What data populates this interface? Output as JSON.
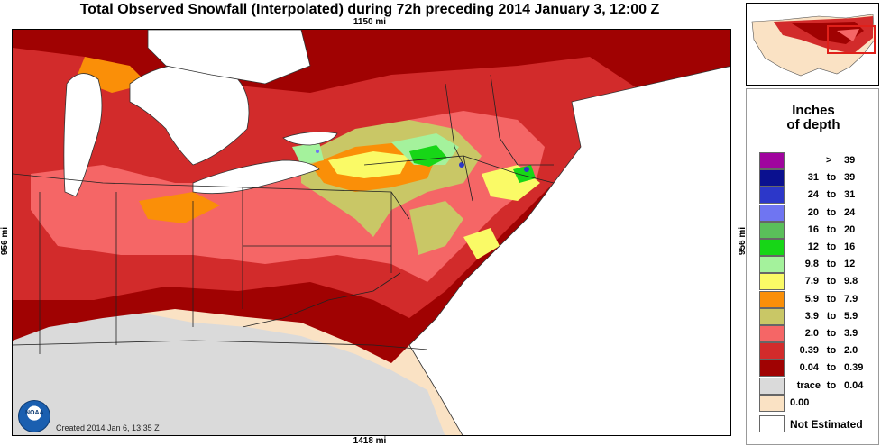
{
  "title": "Total Observed Snowfall (Interpolated) during 72h preceding 2014 January 3, 12:00 Z",
  "distances": {
    "top": "1150 mi",
    "bottom": "1418 mi",
    "left": "956 mi",
    "right": "956 mi"
  },
  "created": "Created 2014 Jan 6, 13:35 Z",
  "logo": {
    "text": "NOAA"
  },
  "legend": {
    "title": "Inches of depth",
    "not_estimated": "Not Estimated",
    "items": [
      {
        "a": ">",
        "to": "",
        "b": "39",
        "color": "#a0049e"
      },
      {
        "a": "31",
        "to": "to",
        "b": "39",
        "color": "#0a108f"
      },
      {
        "a": "24",
        "to": "to",
        "b": "31",
        "color": "#2c37c9"
      },
      {
        "a": "20",
        "to": "to",
        "b": "24",
        "color": "#6f75f2"
      },
      {
        "a": "16",
        "to": "to",
        "b": "20",
        "color": "#5abf5a"
      },
      {
        "a": "12",
        "to": "to",
        "b": "16",
        "color": "#17d617"
      },
      {
        "a": "9.8",
        "to": "to",
        "b": "12",
        "color": "#a4f29c"
      },
      {
        "a": "7.9",
        "to": "to",
        "b": "9.8",
        "color": "#fafa66"
      },
      {
        "a": "5.9",
        "to": "to",
        "b": "7.9",
        "color": "#fa8f08"
      },
      {
        "a": "3.9",
        "to": "to",
        "b": "5.9",
        "color": "#c9c766"
      },
      {
        "a": "2.0",
        "to": "to",
        "b": "3.9",
        "color": "#f56666"
      },
      {
        "a": "0.39",
        "to": "to",
        "b": "2.0",
        "color": "#d22b2b"
      },
      {
        "a": "0.04",
        "to": "to",
        "b": "0.39",
        "color": "#a00202"
      },
      {
        "a": "trace",
        "to": "to",
        "b": "0.04",
        "color": "#dadada"
      },
      {
        "a": "0.00",
        "to": "",
        "b": "",
        "color": "#fae2c4"
      }
    ]
  }
}
